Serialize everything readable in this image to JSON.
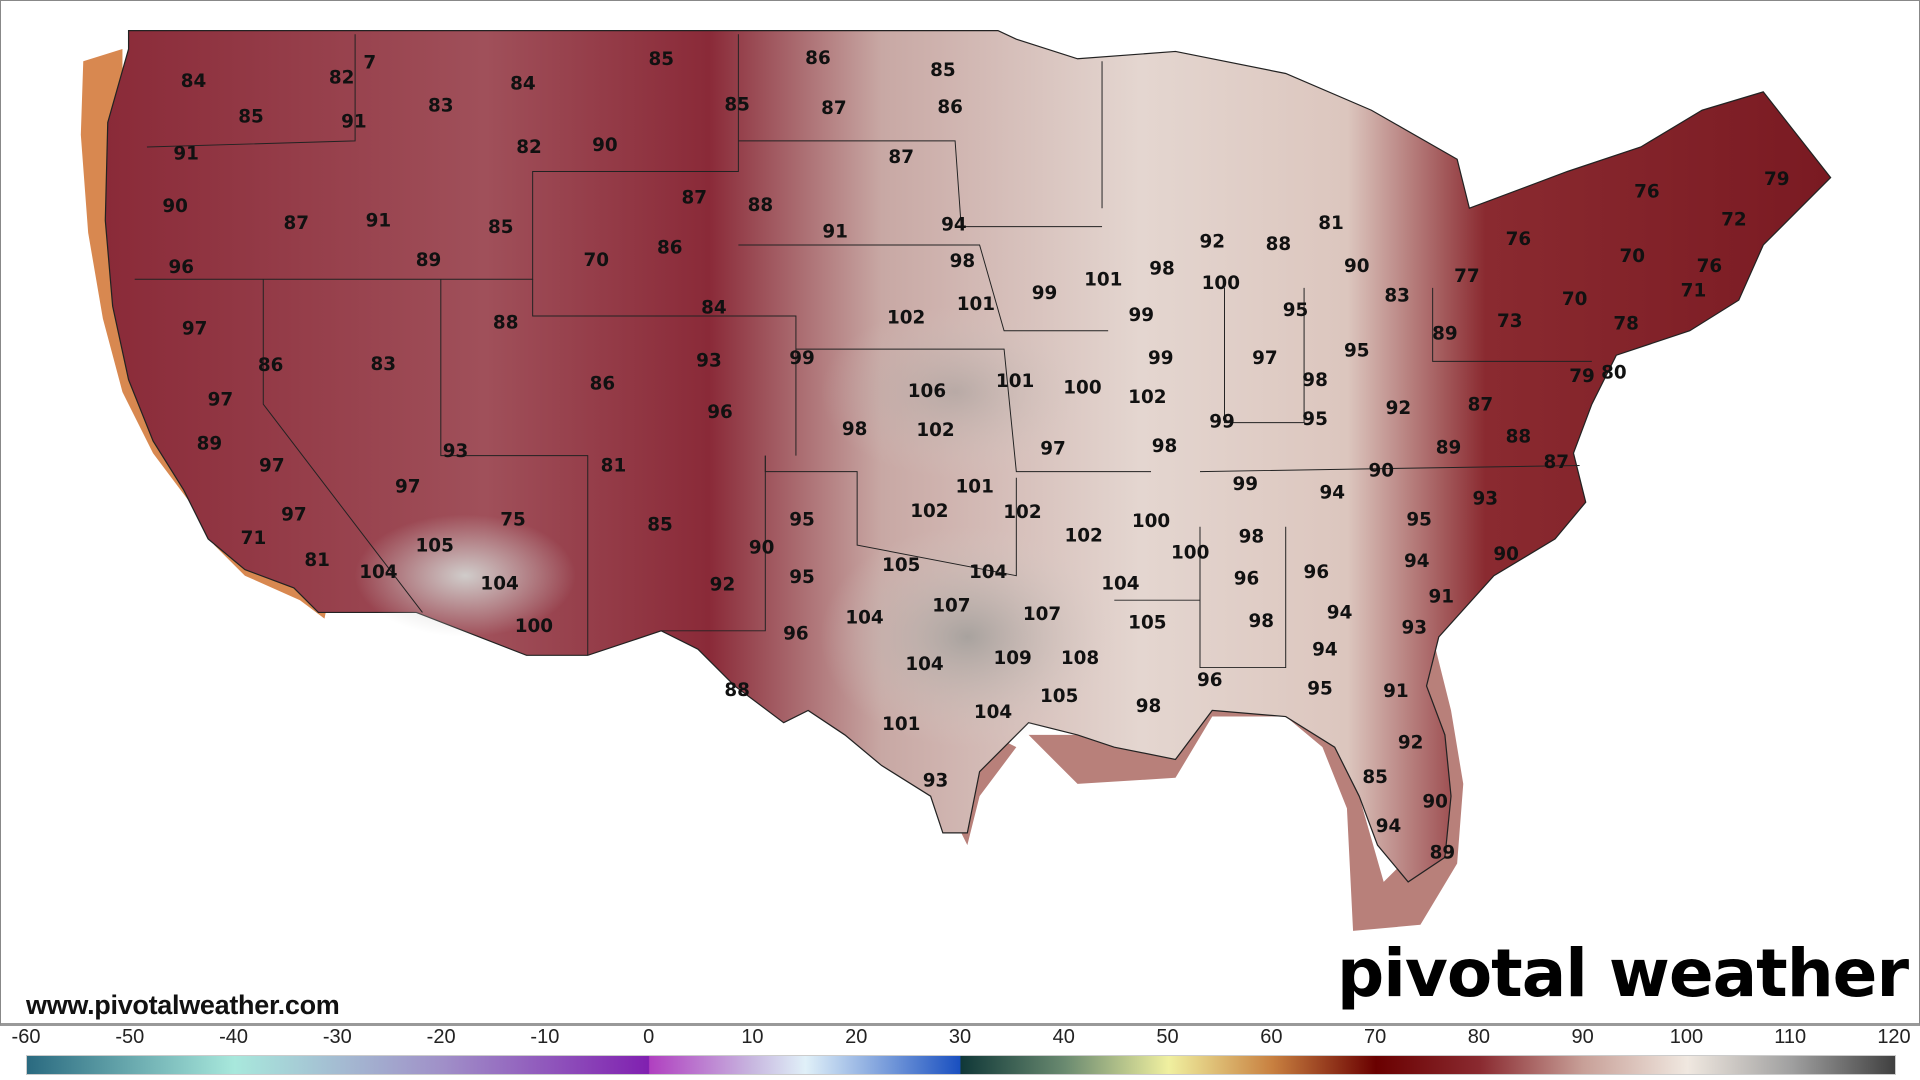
{
  "map": {
    "labels": [
      84,
      82,
      7,
      85,
      91,
      83,
      84,
      85,
      86,
      85,
      85,
      87,
      86,
      82,
      90,
      91,
      87,
      90,
      87,
      91,
      85,
      87,
      88,
      91,
      94,
      96,
      89,
      70,
      86,
      98,
      101,
      102,
      84,
      99,
      101,
      98,
      100,
      92,
      88,
      81,
      90,
      83,
      77,
      76,
      70,
      76,
      79,
      72,
      76,
      71,
      70,
      73,
      78,
      89,
      95,
      95,
      97,
      99,
      99,
      93,
      99,
      88,
      97,
      86,
      83,
      106,
      101,
      100,
      102,
      98,
      92,
      87,
      88,
      95,
      99,
      89,
      79,
      80,
      86,
      96,
      97,
      89,
      98,
      102,
      97,
      98,
      93,
      81,
      97,
      90,
      99,
      94,
      93,
      87,
      97,
      101,
      102,
      102,
      100,
      98,
      95,
      75,
      85,
      95,
      97,
      90,
      102,
      100,
      96,
      94,
      90,
      71,
      105,
      81,
      104,
      105,
      104,
      95,
      96,
      104,
      104,
      92,
      91,
      107,
      94,
      100,
      104,
      107,
      105,
      98,
      96,
      93,
      94,
      104,
      109,
      108,
      96,
      95,
      91,
      88,
      105,
      98,
      104,
      101,
      92,
      85,
      93,
      90,
      94,
      89
    ],
    "colors": {
      "west_maroon": "#8a2a38",
      "plains_pale": "#e6d8d2",
      "texas_gray": "#b3aba6",
      "northeast_red": "#7a1a22",
      "coast_orange": "#d88850",
      "gulf_band": "#b8807a"
    }
  },
  "footer": {
    "url": "www.pivotalweather.com",
    "logo": "pivotal weather"
  },
  "colorbar": {
    "ticks": [
      "-60",
      "-50",
      "-40",
      "-30",
      "-20",
      "-10",
      "0",
      "10",
      "20",
      "30",
      "40",
      "50",
      "60",
      "70",
      "80",
      "90",
      "100",
      "110",
      "120"
    ],
    "range": [
      -60,
      120
    ]
  }
}
